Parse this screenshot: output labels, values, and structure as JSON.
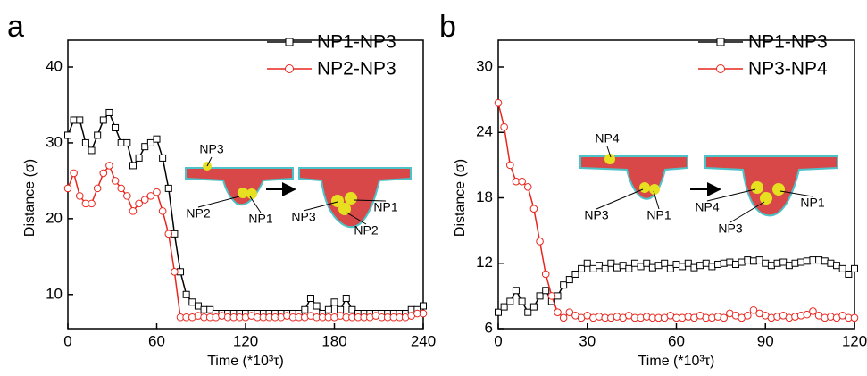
{
  "chart_data": [
    {
      "type": "line",
      "panel_label": "a",
      "xlabel": "Time (*10³τ)",
      "ylabel": "Distance (σ)",
      "x": [
        0,
        4,
        8,
        12,
        16,
        20,
        24,
        28,
        32,
        36,
        40,
        44,
        48,
        52,
        56,
        60,
        64,
        68,
        72,
        76,
        80,
        84,
        88,
        92,
        96,
        100,
        104,
        108,
        112,
        116,
        120,
        124,
        128,
        132,
        136,
        140,
        144,
        148,
        152,
        156,
        160,
        164,
        168,
        172,
        176,
        180,
        184,
        188,
        192,
        196,
        200,
        204,
        208,
        212,
        216,
        220,
        224,
        228,
        232,
        236,
        240
      ],
      "series": [
        {
          "name": "NP1-NP3",
          "color": "#000000",
          "marker": "square",
          "values": [
            31,
            33,
            33,
            30,
            29,
            31,
            33,
            34,
            32,
            30,
            30,
            27,
            28,
            29.5,
            30,
            30.5,
            28,
            24,
            18,
            13,
            10,
            9,
            8.5,
            8,
            8,
            7.5,
            7.5,
            7.5,
            7.5,
            7.5,
            7.5,
            7.5,
            7.5,
            7.5,
            7.5,
            7.5,
            7.5,
            7.5,
            7.5,
            7.5,
            8,
            9.5,
            8.5,
            7.5,
            8,
            9,
            8,
            9.5,
            8,
            7.5,
            7.5,
            7.5,
            7.5,
            7.5,
            7.5,
            7.5,
            7.5,
            7.5,
            8,
            8,
            8.5
          ]
        },
        {
          "name": "NP2-NP3",
          "color": "#e8261e",
          "marker": "circle",
          "values": [
            24,
            26,
            23,
            22,
            22,
            24,
            26,
            27,
            25,
            24,
            23,
            21,
            22,
            22.5,
            23,
            23.5,
            21,
            18,
            13,
            7,
            7,
            7,
            7.2,
            7,
            7,
            7,
            7.2,
            7,
            7,
            7,
            7,
            7.2,
            7,
            7,
            7,
            7,
            7,
            7.2,
            7,
            7,
            7,
            7.2,
            7,
            7,
            7,
            7,
            7.2,
            7,
            7,
            7,
            7,
            7,
            7.2,
            7,
            7,
            7,
            7,
            7,
            7.2,
            7.5,
            7.5
          ]
        }
      ],
      "xlim": [
        0,
        240
      ],
      "ylim": [
        5.5,
        40
      ],
      "xticks": [
        0,
        60,
        120,
        180,
        240
      ],
      "yticks": [
        10,
        20,
        30,
        40
      ],
      "legend": "upper right",
      "annotations": [
        "NP3",
        "NP2",
        "NP1",
        "NP3",
        "NP1",
        "NP2"
      ]
    },
    {
      "type": "line",
      "panel_label": "b",
      "xlabel": "Time (*10³τ)",
      "ylabel": "Distance (σ)",
      "x": [
        0,
        2,
        4,
        6,
        8,
        10,
        12,
        14,
        16,
        18,
        20,
        22,
        24,
        26,
        28,
        30,
        32,
        34,
        36,
        38,
        40,
        42,
        44,
        46,
        48,
        50,
        52,
        54,
        56,
        58,
        60,
        62,
        64,
        66,
        68,
        70,
        72,
        74,
        76,
        78,
        80,
        82,
        84,
        86,
        88,
        90,
        92,
        94,
        96,
        98,
        100,
        102,
        104,
        106,
        108,
        110,
        112,
        114,
        116,
        118,
        120
      ],
      "series": [
        {
          "name": "NP1-NP3",
          "color": "#000000",
          "marker": "square",
          "values": [
            7.5,
            8,
            8.5,
            9.5,
            8.5,
            7.5,
            8,
            9,
            9.5,
            8.5,
            9,
            10,
            10.5,
            11,
            11.5,
            12,
            11.5,
            11.8,
            11.5,
            12,
            11.6,
            11.8,
            11.5,
            12,
            11.7,
            12,
            11.6,
            11.8,
            12,
            11.5,
            11.9,
            11.7,
            12,
            11.6,
            11.8,
            12,
            11.7,
            11.9,
            12,
            12.1,
            11.9,
            12.1,
            12.3,
            12.2,
            12.3,
            12,
            11.8,
            12,
            12.1,
            11.8,
            12,
            12.1,
            12.2,
            12.3,
            12.3,
            12.2,
            12,
            11.8,
            11.5,
            11,
            11.5
          ]
        },
        {
          "name": "NP3-NP4",
          "color": "#e8261e",
          "marker": "circle",
          "values": [
            26.7,
            24.5,
            21,
            19.5,
            19.5,
            19,
            17,
            14,
            11,
            9,
            7.5,
            7,
            7.5,
            7.2,
            7,
            7.2,
            7,
            7.1,
            7,
            7,
            7.1,
            7,
            7.2,
            7,
            7,
            7.1,
            7,
            7,
            7,
            7.2,
            7,
            7,
            7.1,
            7,
            7.2,
            7,
            7,
            7.1,
            7,
            7.4,
            7.2,
            7,
            7.2,
            7.7,
            7.4,
            7.2,
            7,
            7.1,
            7.2,
            7,
            7.1,
            7.2,
            7.3,
            7.6,
            7.2,
            7,
            7.1,
            7,
            7.2,
            7,
            7
          ]
        }
      ],
      "xlim": [
        0,
        120
      ],
      "ylim": [
        6,
        30
      ],
      "xticks": [
        0,
        30,
        60,
        90,
        120
      ],
      "yticks": [
        6,
        12,
        18,
        24,
        30
      ],
      "legend": "upper right",
      "annotations": [
        "NP4",
        "NP3",
        "NP1",
        "NP4",
        "NP3",
        "NP1"
      ]
    }
  ]
}
